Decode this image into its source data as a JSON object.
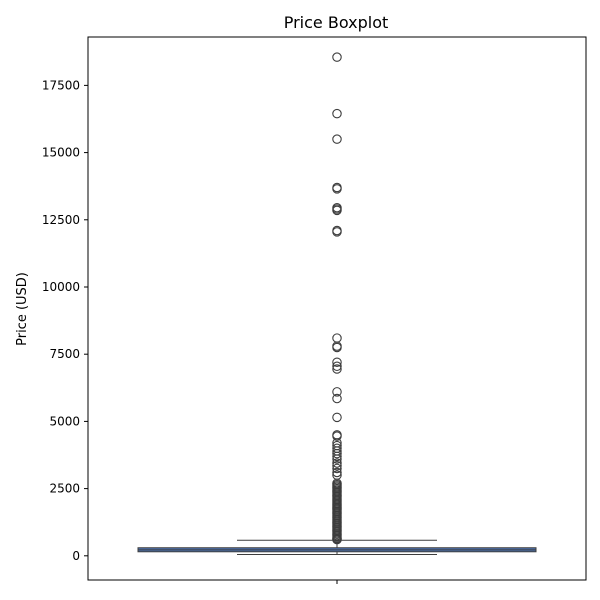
{
  "chart_data": {
    "type": "boxplot",
    "title": "Price Boxplot",
    "xlabel": "",
    "ylabel": "Price (USD)",
    "ylim": [
      -900,
      19300
    ],
    "yticks": [
      0,
      2500,
      5000,
      7500,
      10000,
      12500,
      15000,
      17500
    ],
    "ytick_labels": [
      "0",
      "2500",
      "5000",
      "7500",
      "10000",
      "12500",
      "15000",
      "17500"
    ],
    "grid": false,
    "colors": {
      "box": "#4c72b0",
      "line": "#3d3d3d"
    },
    "box": {
      "whisker_low": 50,
      "q1": 150,
      "median": 220,
      "q3": 300,
      "whisker_high": 580
    },
    "outliers": [
      18550,
      16450,
      15500,
      13700,
      13650,
      12950,
      12900,
      12850,
      12100,
      12050,
      8100,
      7800,
      7750,
      7200,
      7050,
      6950,
      6100,
      5850,
      5150,
      4500,
      4450,
      4200,
      4100,
      4000,
      3900,
      3800,
      3700,
      3600,
      3450,
      3350,
      3250,
      3100,
      3000,
      2700,
      2650,
      2600,
      2550,
      2500,
      2450,
      2400,
      2350,
      2300,
      2250,
      2200,
      2150,
      2100,
      2050,
      2000,
      1950,
      1900,
      1850,
      1800,
      1750,
      1700,
      1650,
      1600,
      1550,
      1500,
      1450,
      1400,
      1350,
      1300,
      1250,
      1200,
      1150,
      1100,
      1050,
      1000,
      950,
      900,
      850,
      800,
      750,
      700,
      650,
      620,
      600
    ]
  }
}
